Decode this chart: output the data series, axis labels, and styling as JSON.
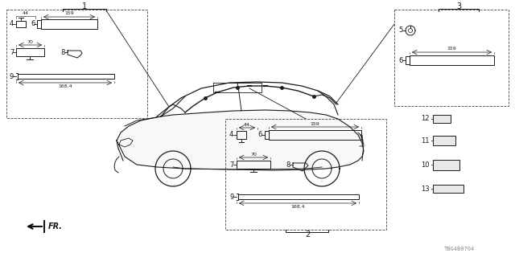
{
  "bg_color": "#ffffff",
  "fig_width": 6.4,
  "fig_height": 3.2,
  "dpi": 100,
  "watermark": "TBG4B0704",
  "direction_label": "FR.",
  "line_color": "#1a1a1a",
  "dim_color": "#1a1a1a",
  "dash_color": "#444444"
}
